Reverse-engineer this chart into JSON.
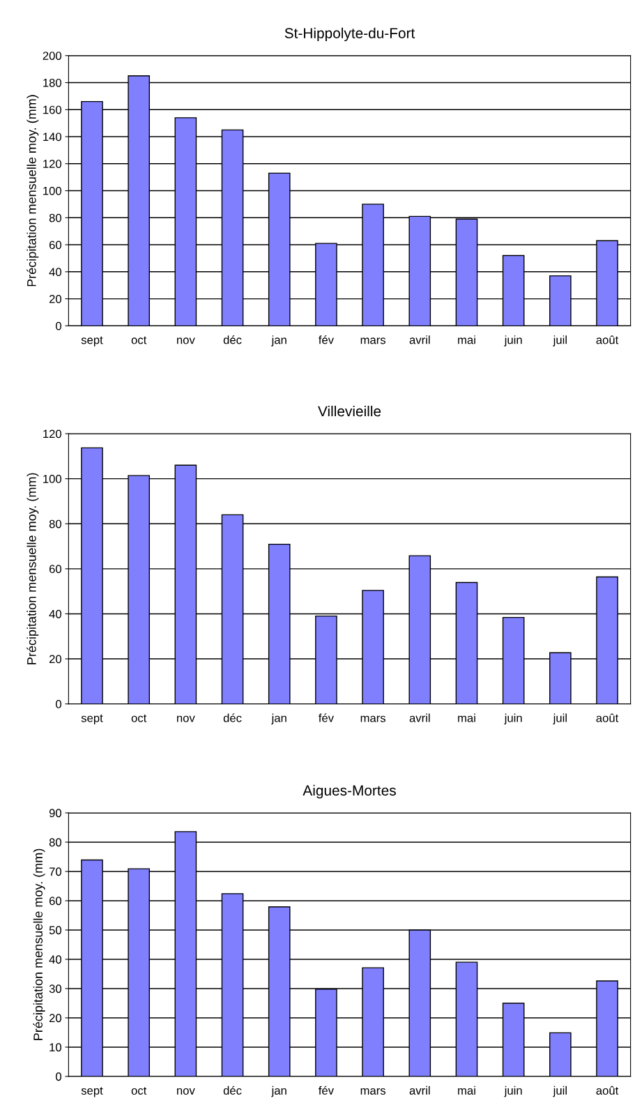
{
  "chart_data": [
    {
      "type": "bar",
      "title": "St-Hippolyte-du-Fort",
      "ylabel": "Précipitation mensuelle moy. (mm)",
      "categories": [
        "sept",
        "oct",
        "nov",
        "déc",
        "jan",
        "fév",
        "mars",
        "avril",
        "mai",
        "juin",
        "juil",
        "août"
      ],
      "values": [
        166,
        185,
        154,
        145,
        113,
        61,
        90,
        81,
        79,
        52,
        37,
        63
      ],
      "color": "#8080ff",
      "ylim": [
        0,
        200
      ],
      "yticks": [
        0,
        20,
        40,
        60,
        80,
        100,
        120,
        140,
        160,
        180,
        200
      ],
      "grid": "y"
    },
    {
      "type": "bar",
      "title": "Villevieille",
      "ylabel": "Précipitation mensuelle moy. (mm)",
      "categories": [
        "sept",
        "oct",
        "nov",
        "déc",
        "jan",
        "fév",
        "mars",
        "avril",
        "mai",
        "juin",
        "juil",
        "août"
      ],
      "values": [
        113.7,
        101.4,
        106,
        84,
        70.9,
        39,
        50.4,
        65.8,
        53.9,
        38.4,
        22.7,
        56.4
      ],
      "color": "#8080ff",
      "ylim": [
        0,
        120
      ],
      "yticks": [
        0,
        20,
        40,
        60,
        80,
        100,
        120
      ],
      "grid": "y"
    },
    {
      "type": "bar",
      "title": "Aigues-Mortes",
      "ylabel": "Précipitation mensuelle moy. (mm)",
      "categories": [
        "sept",
        "oct",
        "nov",
        "déc",
        "jan",
        "fév",
        "mars",
        "avril",
        "mai",
        "juin",
        "juil",
        "août"
      ],
      "values": [
        73.9,
        70.9,
        83.6,
        62.4,
        57.9,
        29.8,
        37.1,
        50,
        39,
        25,
        14.9,
        32.6
      ],
      "color": "#8080ff",
      "ylim": [
        0,
        90
      ],
      "yticks": [
        0,
        10,
        20,
        30,
        40,
        50,
        60,
        70,
        80,
        90
      ],
      "grid": "y"
    }
  ]
}
